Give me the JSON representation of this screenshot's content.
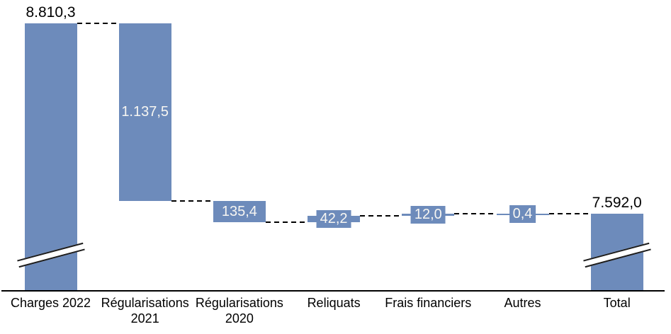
{
  "chart_data": {
    "type": "waterfall",
    "title": "",
    "orientation": "vertical",
    "axis_broken": true,
    "legend": "none",
    "grid": false,
    "categories": [
      "Charges 2022",
      "Régularisations 2021",
      "Régularisations 2020",
      "Reliquats",
      "Frais financiers",
      "Autres",
      "Total"
    ],
    "bars": [
      {
        "label": "Charges 2022",
        "kind": "start",
        "value": 8810.3,
        "display": "8.810,3",
        "label_position": "above",
        "axis_break": true
      },
      {
        "label": "Régularisations 2021",
        "kind": "delta",
        "value": -1137.5,
        "display": "1.137,5",
        "label_position": "inside",
        "axis_break": false
      },
      {
        "label": "Régularisations 2020",
        "kind": "delta",
        "value": -135.4,
        "display": "135,4",
        "label_position": "inside",
        "axis_break": false
      },
      {
        "label": "Reliquats",
        "kind": "delta",
        "value": 42.2,
        "display": "42,2",
        "label_position": "boxed",
        "axis_break": false
      },
      {
        "label": "Frais financiers",
        "kind": "delta",
        "value": 12.0,
        "display": "12,0",
        "label_position": "boxed",
        "axis_break": false
      },
      {
        "label": "Autres",
        "kind": "delta",
        "value": 0.4,
        "display": "0,4",
        "label_position": "boxed",
        "axis_break": false
      },
      {
        "label": "Total",
        "kind": "total",
        "value": 7592.0,
        "display": "7.592,0",
        "label_position": "above",
        "axis_break": true
      }
    ],
    "colors": {
      "bar": "#6D8BBB",
      "label_in_bar": "#F7F6F2",
      "label_outside": "#000000",
      "connector": "#000000",
      "axis": "#000000",
      "background": "#FFFFFF"
    }
  }
}
